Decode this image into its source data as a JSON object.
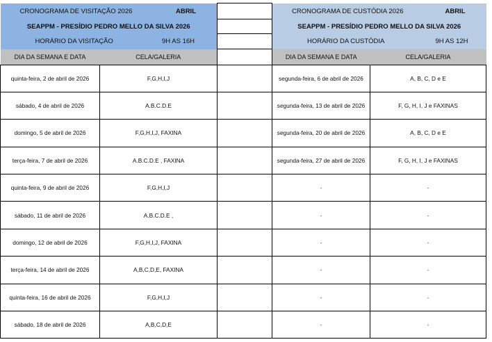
{
  "visitation": {
    "title": "CRONOGRAMA DE VISITAÇÃO 2026",
    "month": "ABRIL",
    "institution": "SEAPPM - PRESÍDIO PEDRO MELLO DA SILVA 2026",
    "hours_label": "HORÁRIO DA VISITAÇÃO",
    "hours": "9H AS 16H",
    "col_date": "DIA DA SEMANA E DATA",
    "col_cell": "CELA/GALERIA",
    "color": "#8db3e2",
    "rows": [
      {
        "date": "quinta-feira, 2 de abril de 2026",
        "cell": "F,G,H,I,J"
      },
      {
        "date": "sábado, 4 de abril de 2026",
        "cell": "A.B.C.D.E"
      },
      {
        "date": "domingo, 5 de abril de 2026",
        "cell": "F,G,H,I,J, FAXINA"
      },
      {
        "date": "terça-feira, 7 de abril de 2026",
        "cell": "A.B.C.D.E , FAXINA"
      },
      {
        "date": "quinta-feira, 9 de abril de 2026",
        "cell": "F,G,H,I,J"
      },
      {
        "date": "sábado, 11 de abril de 2026",
        "cell": "A.B.C.D.E ,"
      },
      {
        "date": "domingo, 12 de abril de 2026",
        "cell": "F,G,H,I,J, FAXINA"
      },
      {
        "date": "terça-feira, 14 de abril de 2026",
        "cell": "A,B,C,D,E, FAXINA"
      },
      {
        "date": "quinta-feira, 16 de abril de 2026",
        "cell": "F,G,H,I,J"
      },
      {
        "date": "sábado, 18 de abril de 2026",
        "cell": "A,B,C,D,E"
      }
    ]
  },
  "custody": {
    "title": "CRONOGRAMA DE CUSTÓDIA 2026",
    "month": "ABRIL",
    "institution": "SEAPPM - PRESÍDIO PEDRO MELLO DA SILVA 2026",
    "hours_label": "HORÁRIO DA CUSTÓDIA",
    "hours": "9H AS 12H",
    "col_date": "DIA DA SEMANA E DATA",
    "col_cell": "CELA/GALERIA",
    "color": "#b8cce4",
    "rows": [
      {
        "date": "segunda-feira, 6 de abril de 2026",
        "cell": "A, B, C, D e E"
      },
      {
        "date": "segunda-feira, 13 de abril de 2026",
        "cell": "F, G, H, I, J e FAXINAS"
      },
      {
        "date": "segunda-feira, 20 de abril de 2026",
        "cell": "A, B, C, D e E"
      },
      {
        "date": "segunda-feira, 27 de abril de 2026",
        "cell": "F, G, H, I, J e FAXINAS"
      },
      {
        "date": "-",
        "cell": "-"
      },
      {
        "date": "-",
        "cell": "-"
      },
      {
        "date": "-",
        "cell": "-"
      },
      {
        "date": "-",
        "cell": "-"
      },
      {
        "date": "-",
        "cell": "-"
      },
      {
        "date": "-",
        "cell": "-"
      }
    ]
  }
}
